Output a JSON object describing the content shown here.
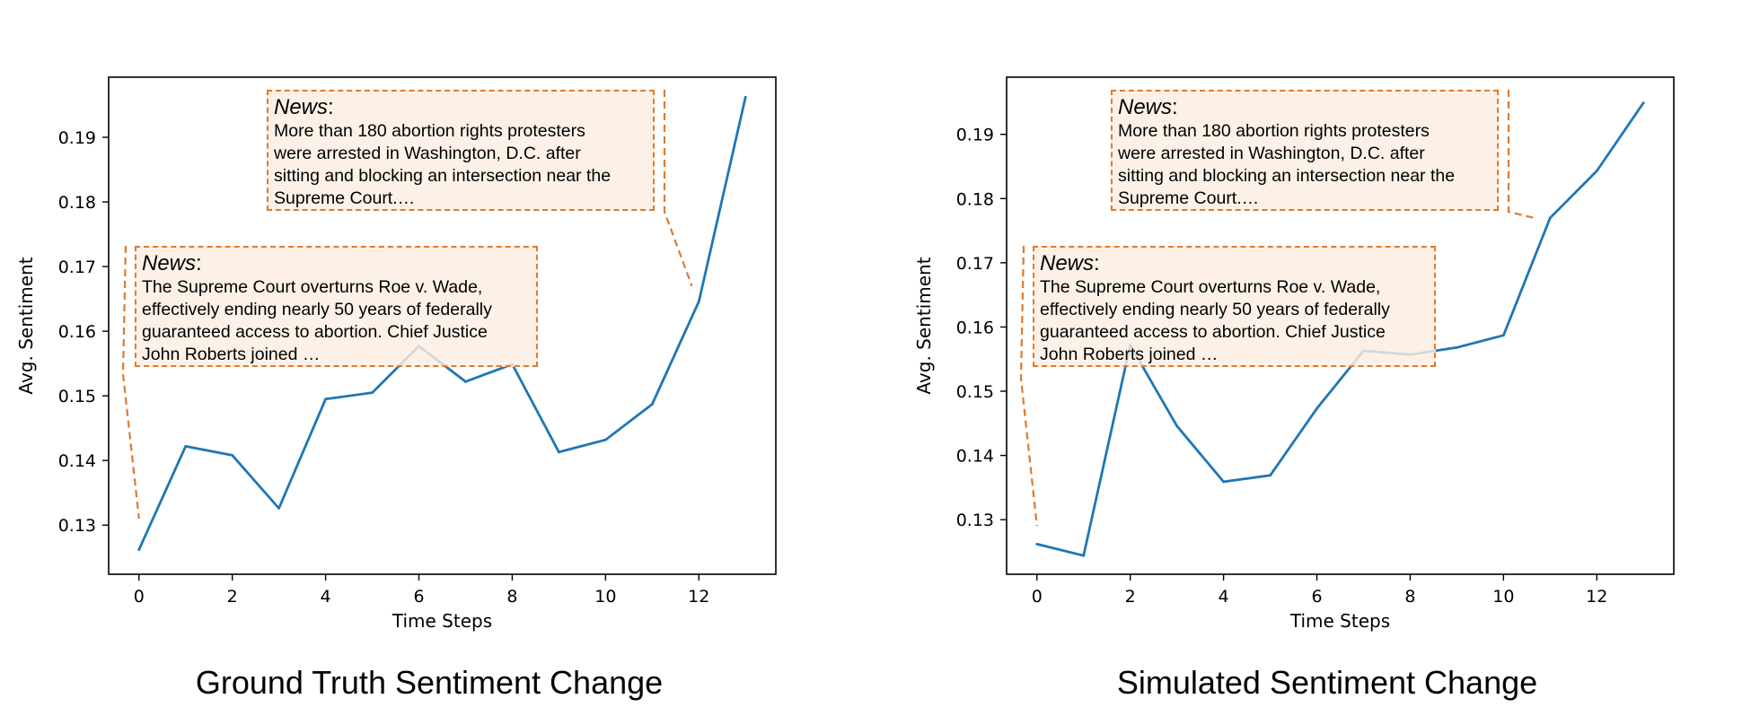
{
  "figure": {
    "captions": [
      "Ground Truth Sentiment Change",
      "Simulated Sentiment Change"
    ]
  },
  "chart_data": [
    {
      "type": "line",
      "title": "",
      "caption": "Ground Truth Sentiment Change",
      "xlabel": "Time Steps",
      "ylabel": "Avg. Sentiment",
      "x": [
        0,
        1,
        2,
        3,
        4,
        5,
        6,
        7,
        8,
        9,
        10,
        11,
        12,
        13
      ],
      "series": [
        {
          "values": [
            0.1262,
            0.1422,
            0.1408,
            0.1326,
            0.1495,
            0.1505,
            0.1577,
            0.1522,
            0.1549,
            0.1413,
            0.1432,
            0.1487,
            0.1646,
            0.1962
          ],
          "color": "#1f77b4"
        }
      ],
      "xticks": [
        0,
        2,
        4,
        6,
        8,
        10,
        12
      ],
      "yticks": [
        0.13,
        0.14,
        0.15,
        0.16,
        0.17,
        0.18,
        0.19
      ],
      "xlim": [
        -0.65,
        13.65
      ],
      "ylim": [
        0.1224,
        0.1993
      ],
      "grid": false,
      "annotations": [
        {
          "label": "News",
          "sep": ":",
          "text": [
            "The Supreme Court overturns Roe v. Wade,",
            "effectively ending nearly 50 years of federally",
            "guaranteed access to abortion. Chief Justice",
            "John Roberts joined …"
          ],
          "target_x": 0,
          "target_y": 0.131,
          "color": "#e07a2c"
        },
        {
          "label": "News",
          "sep": ":",
          "text": [
            "More than 180 abortion rights protesters",
            "were arrested in Washington, D.C. after",
            "sitting and blocking an intersection near the",
            "Supreme Court.…"
          ],
          "target_x": 11.85,
          "target_y": 0.167,
          "color": "#e07a2c"
        }
      ]
    },
    {
      "type": "line",
      "title": "",
      "caption": "Simulated Sentiment Change",
      "xlabel": "Time Steps",
      "ylabel": "Avg. Sentiment",
      "x": [
        0,
        1,
        2,
        3,
        4,
        5,
        6,
        7,
        8,
        9,
        10,
        11,
        12,
        13
      ],
      "series": [
        {
          "values": [
            0.1262,
            0.1244,
            0.1572,
            0.1446,
            0.1359,
            0.1369,
            0.1473,
            0.1563,
            0.1557,
            0.1568,
            0.1587,
            0.177,
            0.1843,
            0.1949
          ],
          "color": "#1f77b4"
        }
      ],
      "xticks": [
        0,
        2,
        4,
        6,
        8,
        10,
        12
      ],
      "yticks": [
        0.13,
        0.14,
        0.15,
        0.16,
        0.17,
        0.18,
        0.19
      ],
      "xlim": [
        -0.65,
        13.65
      ],
      "ylim": [
        0.1215,
        0.1989
      ],
      "grid": false,
      "annotations": [
        {
          "label": "News",
          "sep": ":",
          "text": [
            "The Supreme Court overturns Roe v. Wade,",
            "effectively ending nearly 50 years of federally",
            "guaranteed access to abortion. Chief Justice",
            "John Roberts joined …"
          ],
          "target_x": 0,
          "target_y": 0.129,
          "color": "#e07a2c"
        },
        {
          "label": "News",
          "sep": ":",
          "text": [
            "More than 180 abortion rights protesters",
            "were arrested in Washington, D.C. after",
            "sitting and blocking an intersection near the",
            "Supreme Court.…"
          ],
          "target_x": 10.65,
          "target_y": 0.177,
          "color": "#e07a2c"
        }
      ]
    }
  ]
}
